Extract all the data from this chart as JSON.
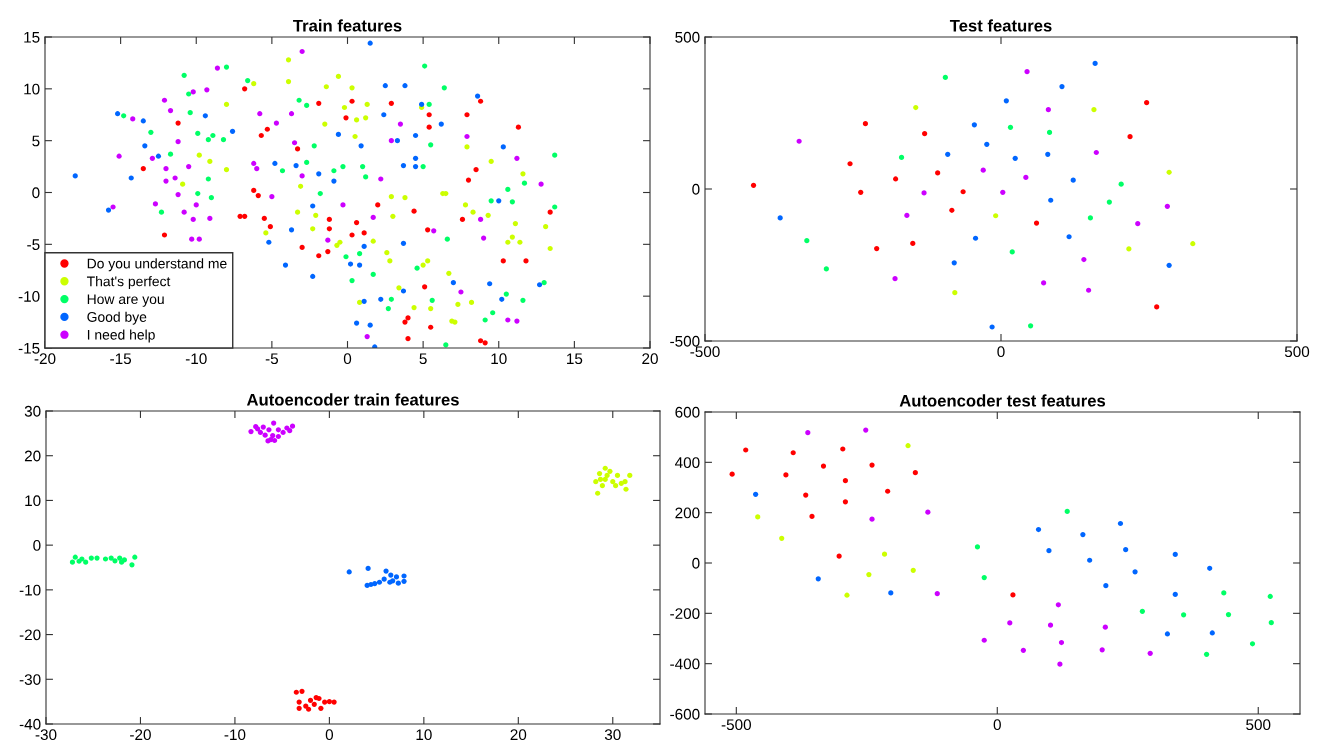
{
  "chart_data": [
    {
      "type": "scatter",
      "title": "Train features",
      "xlim": [
        -20,
        20
      ],
      "ylim": [
        -15,
        15
      ],
      "xticks": [
        -20,
        -15,
        -10,
        -5,
        0,
        5,
        10,
        15,
        20
      ],
      "yticks": [
        -15,
        -10,
        -5,
        0,
        5,
        10,
        15
      ],
      "marker": "circle",
      "legend": "bottom left",
      "series": [
        {
          "name": "Do you understand me",
          "color": "#ff0000",
          "x": [
            -6.8,
            -11.2,
            -13.5,
            -12.1,
            -5.7,
            -5.3,
            -6.2,
            -5.9,
            -7.1,
            -6.8,
            -5.5,
            -5.1,
            -3.3,
            -1.9,
            -0.1,
            -3.0,
            -1.2,
            -1.2,
            -1.9,
            -1.3,
            0.3,
            2.9,
            5.4,
            5.4,
            7.9,
            8.8,
            11.3,
            8.5,
            8.0,
            2.0,
            4.4,
            0.6,
            1.1,
            0.3,
            5.3,
            7.6,
            13.4,
            10.3,
            11.8,
            5.1,
            4.0,
            3.8,
            4.0,
            5.5,
            8.8,
            9.1
          ],
          "values": [
            10.0,
            6.7,
            2.3,
            -4.1,
            5.5,
            6.1,
            0.2,
            -0.3,
            -2.3,
            -2.3,
            -2.5,
            -3.3,
            4.2,
            8.6,
            7.2,
            -5.3,
            -2.6,
            -3.5,
            -6.1,
            -5.7,
            8.8,
            8.6,
            7.5,
            6.3,
            7.5,
            8.8,
            6.3,
            2.2,
            1.2,
            -1.2,
            -1.8,
            -2.9,
            -3.9,
            -4.1,
            -3.6,
            -2.6,
            -1.9,
            -6.6,
            -6.6,
            -9.1,
            -12.1,
            -12.5,
            -14.1,
            -13.0,
            -14.3,
            -14.5
          ]
        },
        {
          "name": "That's perfect",
          "color": "#ccff00",
          "x": [
            -3.9,
            -3.9,
            -6.2,
            -8.0,
            -9.8,
            -9.1,
            -8.0,
            -10.9,
            -3.1,
            -3.3,
            -2.1,
            -2.3,
            -5.4,
            -1.5,
            -1.4,
            -0.6,
            -0.2,
            -0.5,
            -0.7,
            0.3,
            1.3,
            0.6,
            1.2,
            0.5,
            4.9,
            7.9,
            9.5,
            11.6,
            2.9,
            3.8,
            6.3,
            6.5,
            7.8,
            8.3,
            9.3,
            3.0,
            11.1,
            13.1,
            10.9,
            11.4,
            10.6,
            13.4,
            1.7,
            2.6,
            2.8,
            5.3,
            5.0,
            6.7,
            3.4,
            4.4,
            5.5,
            7.3,
            8.2,
            0.8,
            6.9,
            7.1
          ],
          "values": [
            12.8,
            10.7,
            10.5,
            8.5,
            3.6,
            3.0,
            2.2,
            0.8,
            0.6,
            -1.9,
            -2.2,
            -3.5,
            -3.9,
            6.6,
            10.2,
            11.2,
            8.2,
            -4.8,
            -5.1,
            10.1,
            8.5,
            7.0,
            7.2,
            5.4,
            8.2,
            4.4,
            3.0,
            1.8,
            -0.4,
            -0.5,
            -0.1,
            -0.1,
            -1.2,
            -1.9,
            -2.2,
            -2.3,
            -3.0,
            -3.3,
            -4.3,
            -4.8,
            -4.8,
            -5.4,
            -4.7,
            -5.8,
            -6.6,
            -6.6,
            -7.0,
            -7.8,
            -9.2,
            -11.1,
            -11.2,
            -10.8,
            -10.6,
            -10.6,
            -12.4,
            -12.5
          ]
        },
        {
          "name": "How are you",
          "color": "#00ff66",
          "x": [
            -10.8,
            -8.0,
            -10.5,
            -6.6,
            -14.8,
            -10.4,
            -13.0,
            -9.9,
            -8.9,
            -9.2,
            -8.2,
            -11.7,
            -3.2,
            -2.7,
            -2.2,
            -2.7,
            -4.3,
            -9.2,
            -9.9,
            -9.0,
            -12.3,
            -1.8,
            -0.9,
            -0.3,
            5.1,
            6.4,
            5.4,
            5.5,
            1.0,
            1.2,
            5.0,
            13.7,
            11.7,
            10.6,
            9.5,
            10.9,
            13.7,
            6.6,
            -0.1,
            0.8,
            0.3,
            1.7,
            4.6,
            13.0,
            10.5,
            2.9,
            2.7,
            5.6,
            11.6,
            9.6,
            9.1,
            6.5
          ],
          "values": [
            11.3,
            12.1,
            9.5,
            10.8,
            7.4,
            7.7,
            5.8,
            5.7,
            5.5,
            5.1,
            5.1,
            3.7,
            8.9,
            8.4,
            4.5,
            2.9,
            2.1,
            1.3,
            -0.1,
            -0.5,
            -1.9,
            -0.1,
            2.1,
            2.5,
            12.2,
            10.1,
            8.5,
            4.6,
            2.5,
            1.5,
            2.5,
            3.6,
            0.9,
            0.3,
            -0.8,
            -0.9,
            -1.4,
            -4.5,
            -6.2,
            -5.9,
            -8.5,
            -7.9,
            -7.3,
            -8.7,
            -9.8,
            -10.3,
            -11.2,
            -10.4,
            -10.4,
            -11.6,
            -12.3,
            -14.7
          ]
        },
        {
          "name": "Good bye",
          "color": "#0066ff",
          "x": [
            -18.0,
            -15.8,
            -15.2,
            -13.5,
            -13.4,
            -14.3,
            -12.5,
            -9.4,
            -7.6,
            -4.8,
            -3.4,
            -1.9,
            -0.9,
            -0.6,
            -3.7,
            -5.2,
            -2.3,
            -4.1,
            -2.3,
            1.5,
            2.5,
            3.8,
            4.9,
            2.4,
            6.2,
            8.6,
            0.9,
            3.3,
            4.5,
            10.3,
            4.5,
            3.7,
            4.5,
            10.0,
            3.7,
            1.1,
            0.2,
            0.8,
            7.0,
            3.7,
            9.4,
            12.7,
            10.2,
            1.1,
            2.2,
            0.6,
            1.5,
            1.8
          ],
          "values": [
            1.6,
            -1.7,
            7.6,
            6.9,
            4.5,
            1.4,
            3.5,
            7.4,
            5.9,
            2.8,
            2.6,
            1.8,
            1.1,
            5.6,
            -3.6,
            -4.8,
            -1.3,
            -7.0,
            -8.1,
            14.4,
            10.3,
            10.3,
            8.5,
            7.5,
            6.6,
            9.3,
            4.5,
            5.0,
            5.5,
            4.4,
            3.3,
            2.6,
            2.5,
            -0.8,
            -4.9,
            -5.2,
            -6.9,
            -7.0,
            -8.7,
            -9.5,
            -8.8,
            -8.9,
            -10.3,
            -10.5,
            -10.3,
            -12.6,
            -12.8,
            -14.9
          ]
        },
        {
          "name": "I need help",
          "color": "#cc00ff",
          "x": [
            -8.6,
            -10.2,
            -9.3,
            -12.1,
            -11.7,
            -14.2,
            -11.2,
            -15.1,
            -12.9,
            -12.0,
            -10.5,
            -11.4,
            -12.0,
            -11.2,
            -12.7,
            -10.0,
            -10.8,
            -10.2,
            -9.1,
            -15.5,
            -10.3,
            -9.8,
            -5.8,
            -4.7,
            -3.7,
            -3.0,
            -6.2,
            -6.0,
            -3.5,
            -3.0,
            -5.0,
            -0.3,
            -1.3,
            3.5,
            2.9,
            7.9,
            11.2,
            2.2,
            12.8,
            1.7,
            5.7,
            8.8,
            9.0,
            7.5,
            10.6,
            11.2,
            1.3
          ],
          "values": [
            12.0,
            9.7,
            9.9,
            8.9,
            7.9,
            7.1,
            4.9,
            3.5,
            3.3,
            2.3,
            2.5,
            1.4,
            1.1,
            -0.2,
            -1.1,
            -1.2,
            -1.9,
            -2.6,
            -2.5,
            -1.4,
            -4.5,
            -4.5,
            7.6,
            6.7,
            7.6,
            13.6,
            2.8,
            2.3,
            4.8,
            1.6,
            -0.4,
            -1.2,
            -4.6,
            6.6,
            5.0,
            5.4,
            3.3,
            1.3,
            0.8,
            -2.4,
            -3.7,
            -2.6,
            -4.4,
            -9.6,
            -12.3,
            -12.4,
            -13.9
          ]
        }
      ]
    },
    {
      "type": "scatter",
      "title": "Test features",
      "xlim": [
        -500,
        500
      ],
      "ylim": [
        -500,
        500
      ],
      "xticks": [
        -500,
        0,
        500
      ],
      "yticks": [
        -500,
        0,
        500
      ],
      "marker": "circle",
      "series": [
        {
          "color": "#ff0000",
          "x": [
            -418,
            -229,
            -129,
            -255,
            -178,
            -237,
            -107,
            -64,
            -83,
            -210,
            -149,
            60,
            246,
            218,
            263
          ],
          "values": [
            12,
            215,
            182,
            83,
            33,
            -11,
            53,
            -9,
            -70,
            -196,
            -179,
            -112,
            284,
            172,
            -388
          ]
        },
        {
          "color": "#ccff00",
          "x": [
            -144,
            -9,
            -78,
            157,
            284,
            216,
            324
          ],
          "values": [
            268,
            -88,
            -341,
            261,
            55,
            -197,
            -180
          ]
        },
        {
          "color": "#00ff66",
          "x": [
            -94,
            -168,
            -328,
            -295,
            16,
            82,
            19,
            203,
            183,
            151,
            50
          ],
          "values": [
            367,
            104,
            -170,
            -263,
            203,
            186,
            -207,
            16,
            -43,
            -95,
            -450
          ]
        },
        {
          "color": "#0066ff",
          "x": [
            -373,
            -90,
            -45,
            -24,
            9,
            24,
            79,
            103,
            159,
            122,
            84,
            115,
            -43,
            -79,
            284,
            -15
          ],
          "values": [
            -95,
            114,
            211,
            147,
            290,
            101,
            114,
            337,
            413,
            29,
            -37,
            -157,
            -162,
            -243,
            -251,
            -454
          ]
        },
        {
          "color": "#cc00ff",
          "x": [
            -341,
            -30,
            42,
            3,
            -130,
            -159,
            -179,
            44,
            80,
            161,
            281,
            231,
            140,
            72,
            148
          ],
          "values": [
            157,
            62,
            38,
            -11,
            -13,
            -87,
            -295,
            386,
            261,
            120,
            -57,
            -114,
            -232,
            -309,
            -333
          ]
        }
      ]
    },
    {
      "type": "scatter",
      "title": "Autoencoder train features",
      "xlim": [
        -30,
        35
      ],
      "ylim": [
        -40,
        30
      ],
      "xticks": [
        -30,
        -20,
        -10,
        0,
        10,
        20,
        30
      ],
      "yticks": [
        -40,
        -30,
        -20,
        -10,
        0,
        10,
        20,
        30
      ],
      "marker": "circle",
      "series": [
        {
          "color": "#ff0000",
          "x": [
            -3.5,
            -2.9,
            -3.2,
            -3.2,
            -2.5,
            -2.0,
            -1.6,
            -1.1,
            -0.9,
            -0.5,
            0.0,
            0.5,
            -2.2,
            -1.4
          ],
          "values": [
            -32.9,
            -32.7,
            -35.1,
            -36.5,
            -36.0,
            -34.7,
            -35.6,
            -34.3,
            -36.5,
            -35.1,
            -35.0,
            -35.1,
            -36.7,
            -34.1
          ]
        },
        {
          "color": "#ccff00",
          "x": [
            28.2,
            28.4,
            28.6,
            29.2,
            29.7,
            29.2,
            28.9,
            30.0,
            30.5,
            30.3,
            30.9,
            31.4,
            31.8,
            31.3,
            29.4,
            28.7
          ],
          "values": [
            14.2,
            11.6,
            16.0,
            17.2,
            16.5,
            14.7,
            13.3,
            14.2,
            15.6,
            13.3,
            13.8,
            12.5,
            15.6,
            14.2,
            15.6,
            14.7
          ]
        },
        {
          "color": "#00ff66",
          "x": [
            -27.2,
            -26.9,
            -26.2,
            -25.8,
            -25.2,
            -24.6,
            -23.7,
            -23.1,
            -22.7,
            -22.2,
            -21.7,
            -20.9,
            -20.6,
            -26.5,
            -22.0
          ],
          "values": [
            -3.8,
            -2.7,
            -3.1,
            -3.8,
            -2.9,
            -2.9,
            -3.1,
            -2.9,
            -3.5,
            -2.9,
            -3.3,
            -4.4,
            -2.7,
            -3.6,
            -3.8
          ]
        },
        {
          "color": "#0066ff",
          "x": [
            2.1,
            4.1,
            4.0,
            4.8,
            5.3,
            5.8,
            6.0,
            6.5,
            6.7,
            7.1,
            7.3,
            7.9,
            7.9,
            6.4,
            4.4
          ],
          "values": [
            -6.0,
            -5.2,
            -9.0,
            -8.6,
            -8.3,
            -7.6,
            -5.8,
            -6.7,
            -8.0,
            -7.1,
            -8.5,
            -6.9,
            -8.1,
            -8.3,
            -8.8
          ]
        },
        {
          "color": "#cc00ff",
          "x": [
            -8.3,
            -7.8,
            -7.0,
            -5.9,
            -6.4,
            -6.0,
            -6.5,
            -5.8,
            -5.4,
            -4.9,
            -4.5,
            -3.9,
            -7.3,
            -6.8,
            -6.2,
            -5.4,
            -4.2,
            -7.6
          ],
          "values": [
            25.4,
            26.5,
            26.4,
            27.3,
            25.8,
            24.5,
            23.3,
            23.4,
            24.3,
            25.2,
            26.2,
            26.6,
            25.2,
            24.6,
            23.6,
            25.8,
            25.6,
            26.0
          ]
        }
      ]
    },
    {
      "type": "scatter",
      "title": "Autoencoder test features",
      "xlim": [
        -560,
        580
      ],
      "ylim": [
        -600,
        600
      ],
      "xticks": [
        -500,
        0,
        500
      ],
      "yticks": [
        -600,
        -400,
        -200,
        0,
        200,
        400,
        600
      ],
      "marker": "circle",
      "series": [
        {
          "color": "#ff0000",
          "x": [
            -508,
            -482,
            -391,
            -405,
            -367,
            -355,
            -333,
            -296,
            -291,
            -291,
            -240,
            -210,
            -157,
            -303,
            30
          ],
          "values": [
            353,
            449,
            438,
            350,
            270,
            185,
            385,
            453,
            327,
            243,
            389,
            285,
            359,
            27,
            -127
          ]
        },
        {
          "color": "#ccff00",
          "x": [
            -459,
            -413,
            -171,
            -216,
            -246,
            -161,
            -288
          ],
          "values": [
            183,
            98,
            466,
            35,
            -46,
            -29,
            -128
          ]
        },
        {
          "color": "#00ff66",
          "x": [
            -38,
            134,
            -25,
            278,
            357,
            434,
            443,
            523,
            525,
            489,
            401
          ],
          "values": [
            64,
            205,
            -58,
            -192,
            -206,
            -119,
            -205,
            -133,
            -237,
            -321,
            -363
          ]
        },
        {
          "color": "#0066ff",
          "x": [
            -463,
            -343,
            -204,
            79,
            164,
            236,
            99,
            177,
            246,
            264,
            208,
            341,
            407,
            341,
            326,
            412
          ],
          "values": [
            273,
            -63,
            -119,
            133,
            113,
            157,
            49,
            11,
            53,
            -35,
            -90,
            34,
            -21,
            -125,
            -282,
            -278
          ]
        },
        {
          "color": "#cc00ff",
          "x": [
            -363,
            -252,
            -240,
            -133,
            -115,
            117,
            24,
            102,
            207,
            123,
            -25,
            50,
            201,
            120,
            293
          ],
          "values": [
            518,
            528,
            174,
            202,
            -122,
            -166,
            -238,
            -247,
            -255,
            -316,
            -307,
            -347,
            -345,
            -402,
            -359
          ]
        }
      ]
    }
  ]
}
